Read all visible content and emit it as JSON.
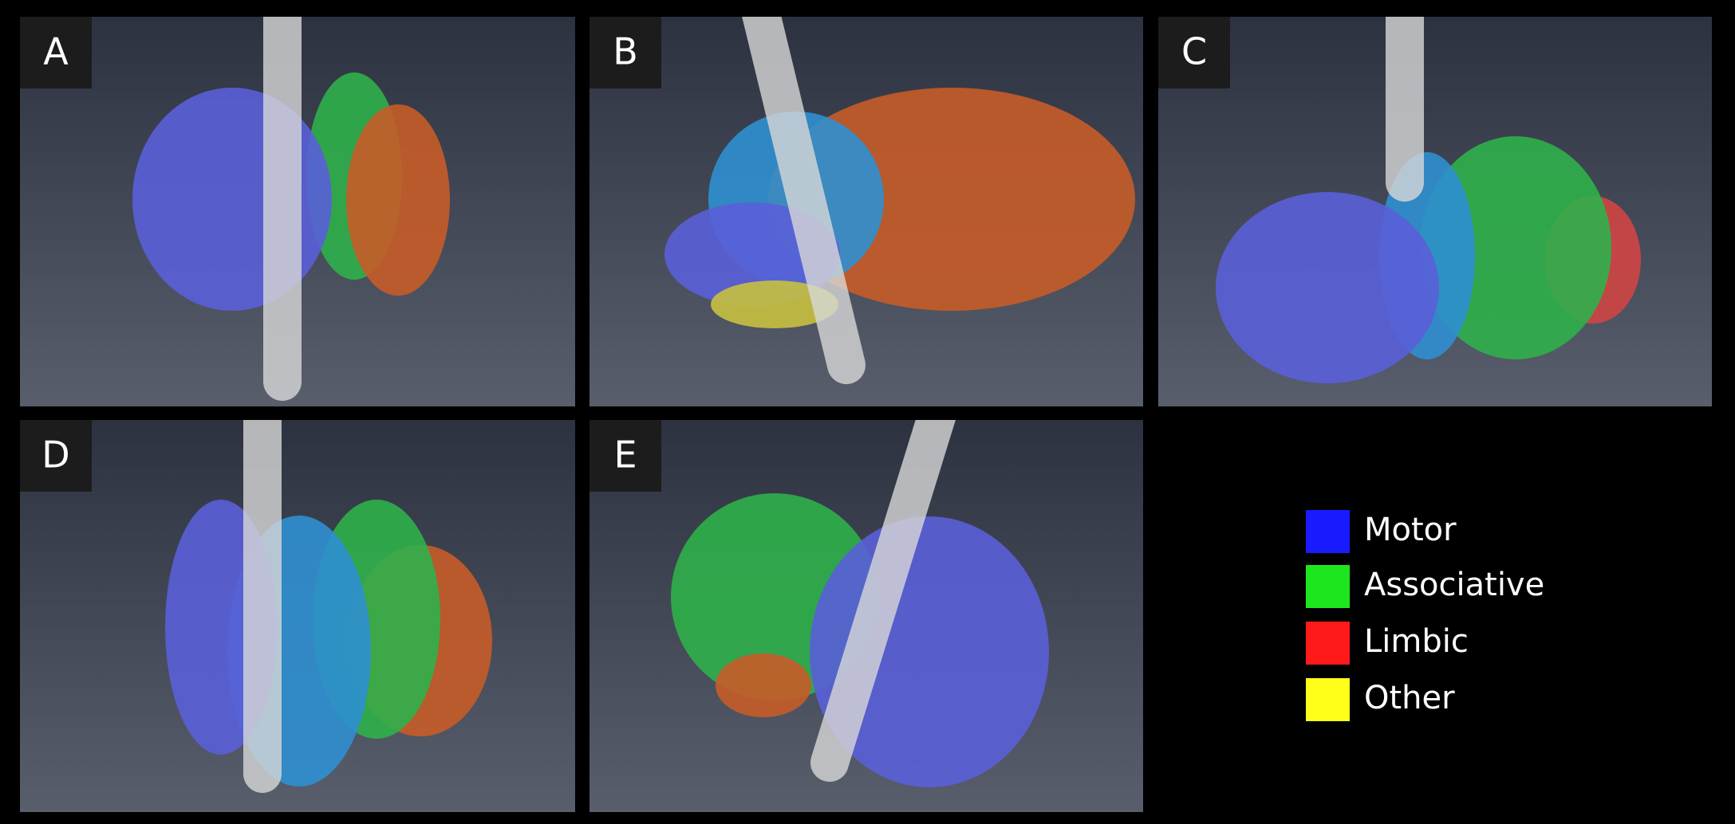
{
  "panels": [
    {
      "label": "A"
    },
    {
      "label": "B"
    },
    {
      "label": "C"
    },
    {
      "label": "D"
    },
    {
      "label": "E"
    }
  ],
  "legend": [
    {
      "label": "Motor",
      "color": "#1a1aff"
    },
    {
      "label": "Associative",
      "color": "#1ee61e"
    },
    {
      "label": "Limbic",
      "color": "#ff1a1a"
    },
    {
      "label": "Other",
      "color": "#ffff1a"
    }
  ]
}
